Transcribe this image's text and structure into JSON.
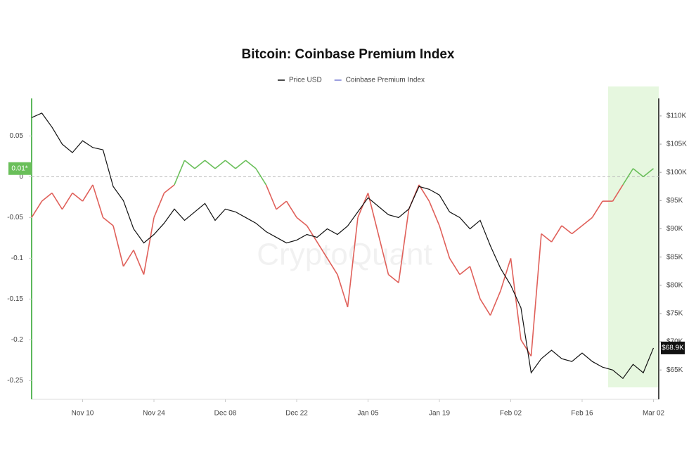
{
  "chart_data": {
    "type": "line",
    "title": "Bitcoin: Coinbase Premium Index",
    "watermark": "CryptoQuant",
    "categories": [
      null,
      null,
      null,
      null,
      null,
      "Nov 10",
      null,
      null,
      null,
      null,
      null,
      null,
      "Nov 24",
      null,
      null,
      null,
      null,
      null,
      null,
      "Dec 08",
      null,
      null,
      null,
      null,
      null,
      null,
      "Dec 22",
      null,
      null,
      null,
      null,
      null,
      null,
      "Jan 05",
      null,
      null,
      null,
      null,
      null,
      null,
      "Jan 19",
      null,
      null,
      null,
      null,
      null,
      null,
      "Feb 02",
      null,
      null,
      null,
      null,
      null,
      null,
      "Feb 16",
      null,
      null,
      null,
      null,
      null,
      null,
      "Mar 02"
    ],
    "series": [
      {
        "name": "Price USD",
        "color": "#111111",
        "axis": "y2",
        "values": [
          109700,
          110500,
          108000,
          105000,
          103500,
          105600,
          104400,
          104000,
          97500,
          95000,
          90000,
          87500,
          89000,
          91000,
          93500,
          91500,
          93000,
          94500,
          91500,
          93500,
          93000,
          92000,
          91000,
          89500,
          88500,
          87500,
          88000,
          89000,
          88500,
          90000,
          89000,
          90500,
          93000,
          95500,
          94000,
          92500,
          92000,
          93500,
          97500,
          97000,
          96000,
          93000,
          92000,
          90000,
          91500,
          87000,
          83000,
          80000,
          76000,
          64500,
          67000,
          68500,
          67000,
          66500,
          68000,
          66500,
          65500,
          65000,
          63500,
          66000,
          64500,
          68900
        ]
      },
      {
        "name": "Coinbase Premium Index",
        "color": "#7b7fd4",
        "positive_color": "#6abf5a",
        "negative_color": "#e0605a",
        "values": [
          -0.05,
          -0.03,
          -0.02,
          -0.04,
          -0.02,
          -0.03,
          -0.01,
          -0.05,
          -0.06,
          -0.11,
          -0.09,
          -0.12,
          -0.05,
          -0.02,
          -0.01,
          0.02,
          0.01,
          0.02,
          0.01,
          0.02,
          0.01,
          0.02,
          0.01,
          -0.01,
          -0.04,
          -0.03,
          -0.05,
          -0.06,
          -0.08,
          -0.1,
          -0.12,
          -0.16,
          -0.05,
          -0.02,
          -0.07,
          -0.12,
          -0.13,
          -0.04,
          -0.01,
          -0.03,
          -0.06,
          -0.1,
          -0.12,
          -0.11,
          -0.15,
          -0.17,
          -0.14,
          -0.1,
          -0.2,
          -0.22,
          -0.07,
          -0.08,
          -0.06,
          -0.07,
          -0.06,
          -0.05,
          -0.03,
          -0.03,
          -0.01,
          0.01,
          0.0,
          0.01
        ]
      }
    ],
    "last_value_labels": [
      "$68.9K",
      "0.01*"
    ],
    "ylim": [
      -0.273,
      0.096
    ],
    "yticks": [
      -0.25,
      -0.2,
      -0.15,
      -0.1,
      -0.05,
      0,
      0.05
    ],
    "y2lim": [
      59800,
      113100
    ],
    "y2ticks": [
      {
        "value": 65000,
        "label": "$65K"
      },
      {
        "value": 70000,
        "label": "$70K"
      },
      {
        "value": 75000,
        "label": "$75K"
      },
      {
        "value": 80000,
        "label": "$80K"
      },
      {
        "value": 85000,
        "label": "$85K"
      },
      {
        "value": 90000,
        "label": "$90K"
      },
      {
        "value": 95000,
        "label": "$95K"
      },
      {
        "value": 100000,
        "label": "$100K"
      },
      {
        "value": 105000,
        "label": "$105K"
      },
      {
        "value": 110000,
        "label": "$110K"
      }
    ],
    "grid": false
  }
}
